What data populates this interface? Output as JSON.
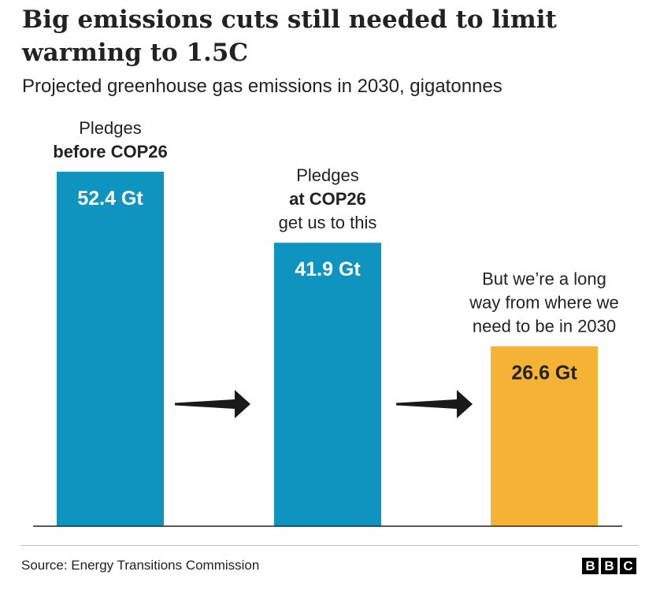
{
  "title": "Big emissions cuts still needed to limit warming to 1.5C",
  "subtitle": "Projected greenhouse gas emissions in 2030, gigatonnes",
  "source": "Source: Energy Transitions Commission",
  "logo": [
    "B",
    "B",
    "C"
  ],
  "colors": {
    "blue": "#0f94c0",
    "amber": "#f5b335",
    "arrow": "#1a1a1a",
    "baseline": "#222222"
  },
  "chart_data": {
    "type": "bar",
    "categories": [
      "Pledges before COP26",
      "Pledges at COP26",
      "Where we need to be in 2030"
    ],
    "values": [
      52.4,
      41.9,
      26.6
    ],
    "unit": "Gt",
    "value_labels": [
      "52.4 Gt",
      "41.9 Gt",
      "26.6 Gt"
    ],
    "bar_colors": [
      "#0f94c0",
      "#0f94c0",
      "#f5b335"
    ],
    "annotations": [
      [
        {
          "text": "Pledges",
          "bold": false
        },
        {
          "text": "before COP26",
          "bold": true
        }
      ],
      [
        {
          "text": "Pledges",
          "bold": false
        },
        {
          "text": "at COP26",
          "bold": true
        },
        {
          "text": "get us to this",
          "bold": false
        }
      ],
      [
        {
          "text": "But we’re a long",
          "bold": false
        },
        {
          "text": "way from where we",
          "bold": false
        },
        {
          "text": "need to be in 2030",
          "bold": false
        }
      ]
    ],
    "ylim": [
      0,
      52.4
    ],
    "grid": false,
    "legend": "none"
  }
}
